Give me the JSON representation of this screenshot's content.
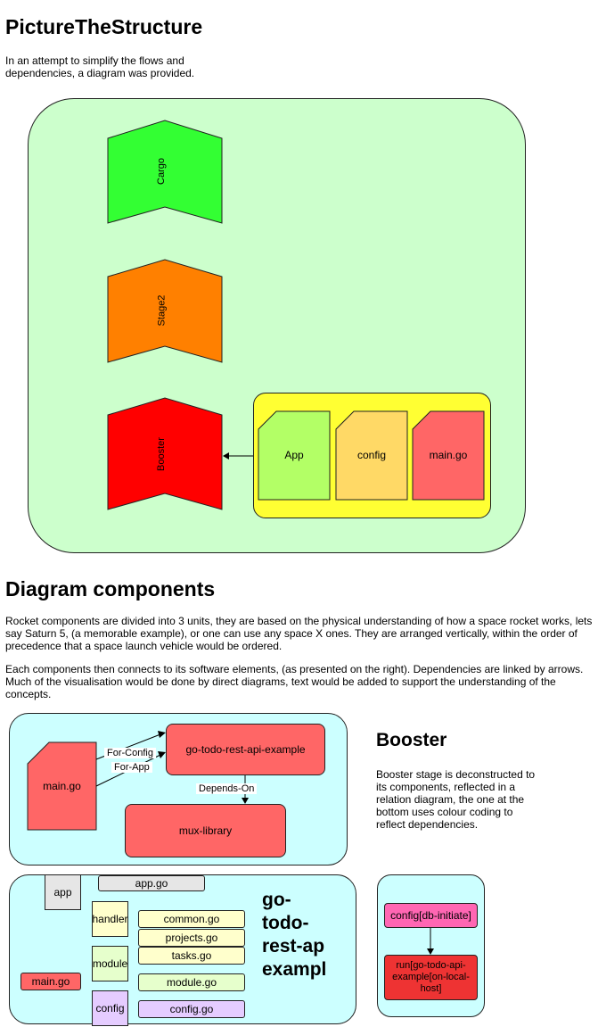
{
  "section1": {
    "title": "PictureTheStructure",
    "intro_line1": "In an attempt to simplify the flows and",
    "intro_line2": "dependencies, a diagram was provided."
  },
  "rocket": {
    "cargo": "Cargo",
    "stage2": "Stage2",
    "booster": "Booster",
    "app": "App",
    "config": "config",
    "main": "main.go"
  },
  "section2": {
    "title": "Diagram components",
    "p1_l1": "Rocket components are divided into 3 units, they are based on the physical understanding of how a space rocket works, lets",
    "p1_l2": "say Saturn 5, (a memorable example), or one can use any space X ones. They are arranged vertically, within the order of",
    "p1_l3": "precedence that a space launch vehicle would be ordered.",
    "p2_l1": "Each components then connects to its software elements, (as presented on the right). Dependencies are linked by arrows.",
    "p2_l2": "Much of the visualisation would be done by direct diagrams, text would be added to support the understanding of the",
    "p2_l3": "concepts."
  },
  "relation": {
    "main": "main.go",
    "api": "go-todo-rest-api-example",
    "mux": "mux-library",
    "for_config": "For-Config",
    "for_app": "For-App",
    "depends_on": "Depends-On"
  },
  "booster_desc": {
    "title": "Booster",
    "l1": "Booster stage is deconstructed to",
    "l2": "its components, reflected in a",
    "l3": "relation diagram, the one at the",
    "l4": "bottom uses colour coding to",
    "l5": "reflect dependencies."
  },
  "tree": {
    "app": "app",
    "app_go": "app.go",
    "handler": "handler",
    "common": "common.go",
    "projects": "projects.go",
    "tasks": "tasks.go",
    "module": "module",
    "module_go": "module.go",
    "main": "main.go",
    "config": "config",
    "config_go": "config.go",
    "big_l1": "go-",
    "big_l2": "todo-",
    "big_l3": "rest-ap",
    "big_l4": "exampl"
  },
  "run": {
    "config": "config[db-initiate]",
    "run_l1": "run[go-todo-api-",
    "run_l2": "example[on-local-",
    "run_l3": "host]"
  },
  "colors": {
    "mint_bg": "#ccffcc",
    "cyan_bg": "#ccffff",
    "cargo": "#33ff33",
    "stage2": "#ff8000",
    "booster": "#ff0000",
    "yellow": "#ffff33",
    "app_green": "#b3ff66",
    "config_orange": "#ffd966",
    "red_soft": "#ff6666",
    "pink": "#ff66b3",
    "run_red": "#ee3333"
  }
}
